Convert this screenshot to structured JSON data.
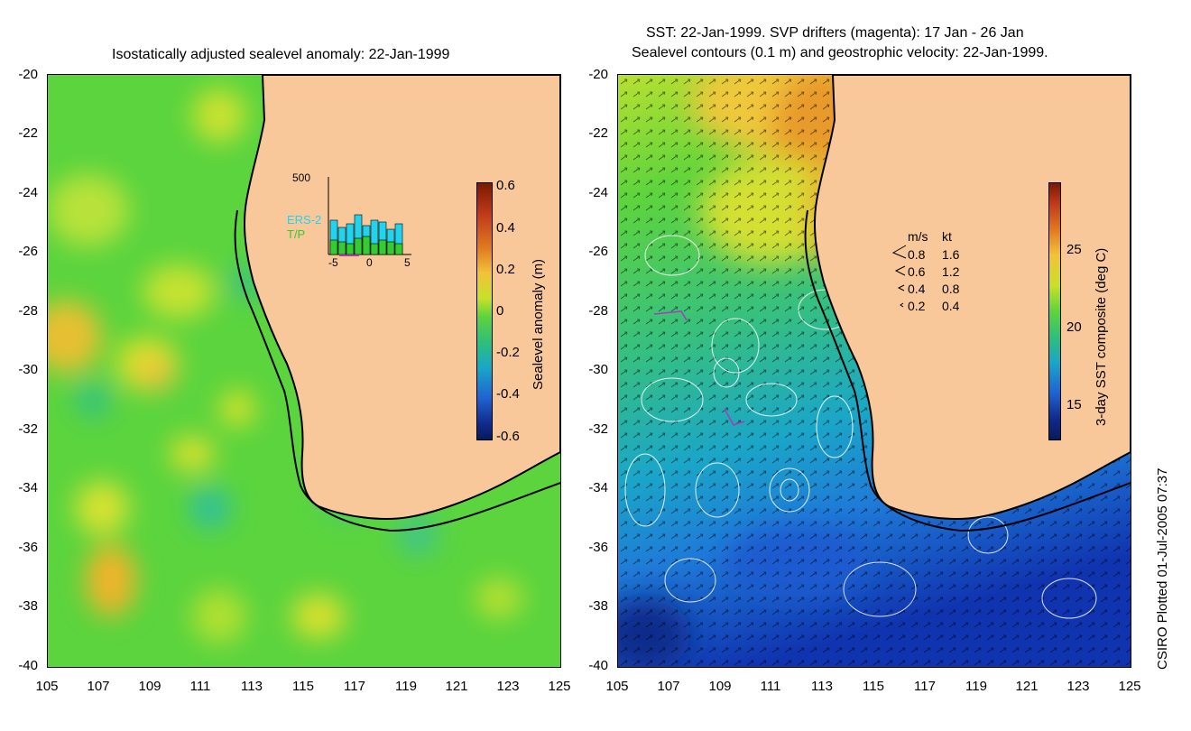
{
  "left_panel": {
    "title": "Isostatically adjusted sealevel anomaly: 22-Jan-1999",
    "y_ticks": [
      "-20",
      "-22",
      "-24",
      "-26",
      "-28",
      "-30",
      "-32",
      "-34",
      "-36",
      "-38",
      "-40"
    ],
    "x_ticks": [
      "105",
      "107",
      "109",
      "111",
      "113",
      "115",
      "117",
      "119",
      "121",
      "123",
      "125"
    ],
    "colorbar": {
      "label": "Sealevel anomaly (m)",
      "ticks": [
        "0.6",
        "0.4",
        "0.2",
        "0",
        "-0.2",
        "-0.4",
        "-0.6"
      ]
    },
    "inset": {
      "y_max_label": "500",
      "legend": [
        "ERS-2",
        "T/P"
      ],
      "x_ticks": [
        "-5",
        "0",
        "5"
      ],
      "colors": {
        "ers2": "#22d3f0",
        "tp": "#33cc33"
      }
    }
  },
  "right_panel": {
    "title_line1": "SST: 22-Jan-1999. SVP drifters (magenta): 17 Jan - 26 Jan",
    "title_line2": "Sealevel contours (0.1 m) and geostrophic velocity: 22-Jan-1999.",
    "y_ticks": [
      "-20",
      "-22",
      "-24",
      "-26",
      "-28",
      "-30",
      "-32",
      "-34",
      "-36",
      "-38",
      "-40"
    ],
    "x_ticks": [
      "105",
      "107",
      "109",
      "111",
      "113",
      "115",
      "117",
      "119",
      "121",
      "123",
      "125"
    ],
    "colorbar": {
      "label": "3-day SST composite (deg C)",
      "ticks": [
        "25",
        "20",
        "15"
      ]
    },
    "velocity_legend": {
      "headers": [
        "m/s",
        "kt"
      ],
      "rows": [
        {
          "ms": "0.8",
          "kt": "1.6"
        },
        {
          "ms": "0.6",
          "kt": "1.2"
        },
        {
          "ms": "0.4",
          "kt": "0.8"
        },
        {
          "ms": "0.2",
          "kt": "0.4"
        }
      ]
    }
  },
  "credit": "CSIRO Plotted 01-Jul-2005 07:37",
  "colors": {
    "land": "#f8c89a",
    "coast": "#000000"
  }
}
